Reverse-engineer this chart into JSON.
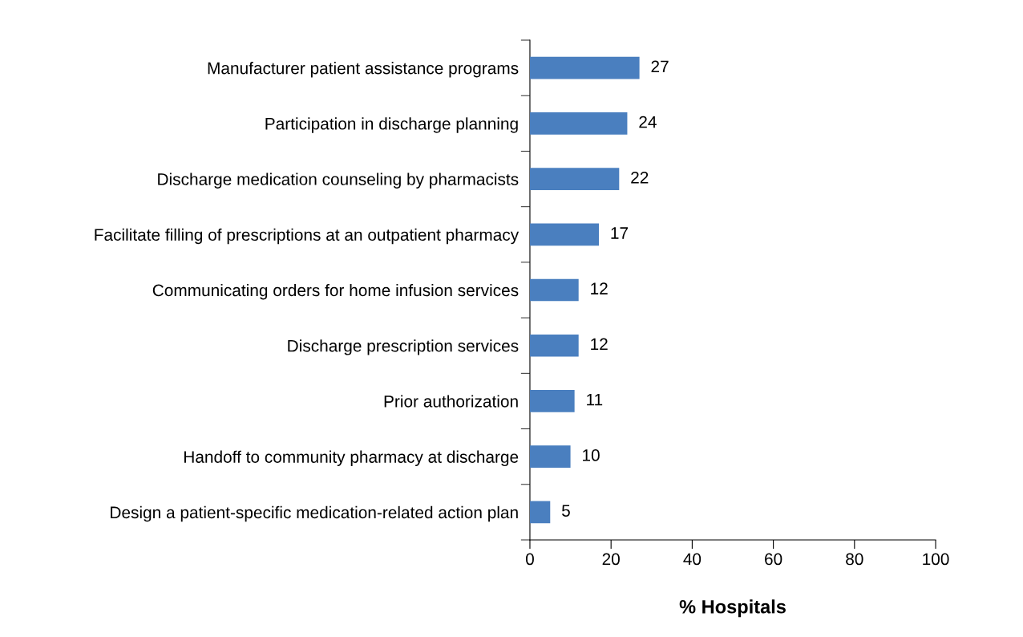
{
  "chart_data": {
    "type": "bar",
    "orientation": "horizontal",
    "xlabel": "% Hospitals",
    "categories": [
      "Manufacturer patient assistance programs",
      "Participation in discharge planning",
      "Discharge medication counseling by pharmacists",
      "Facilitate filling of prescriptions at an outpatient pharmacy",
      "Communicating orders for home infusion services",
      "Discharge prescription services",
      "Prior authorization",
      "Handoff to community pharmacy at discharge",
      "Design a patient-specific medication-related action plan"
    ],
    "values": [
      27,
      24,
      22,
      17,
      12,
      12,
      11,
      10,
      5
    ],
    "color": "#4a7fbf",
    "xlim": [
      0,
      100
    ],
    "xticks": [
      0,
      20,
      40,
      60,
      80,
      100
    ],
    "data_labels": true,
    "grid": false
  }
}
